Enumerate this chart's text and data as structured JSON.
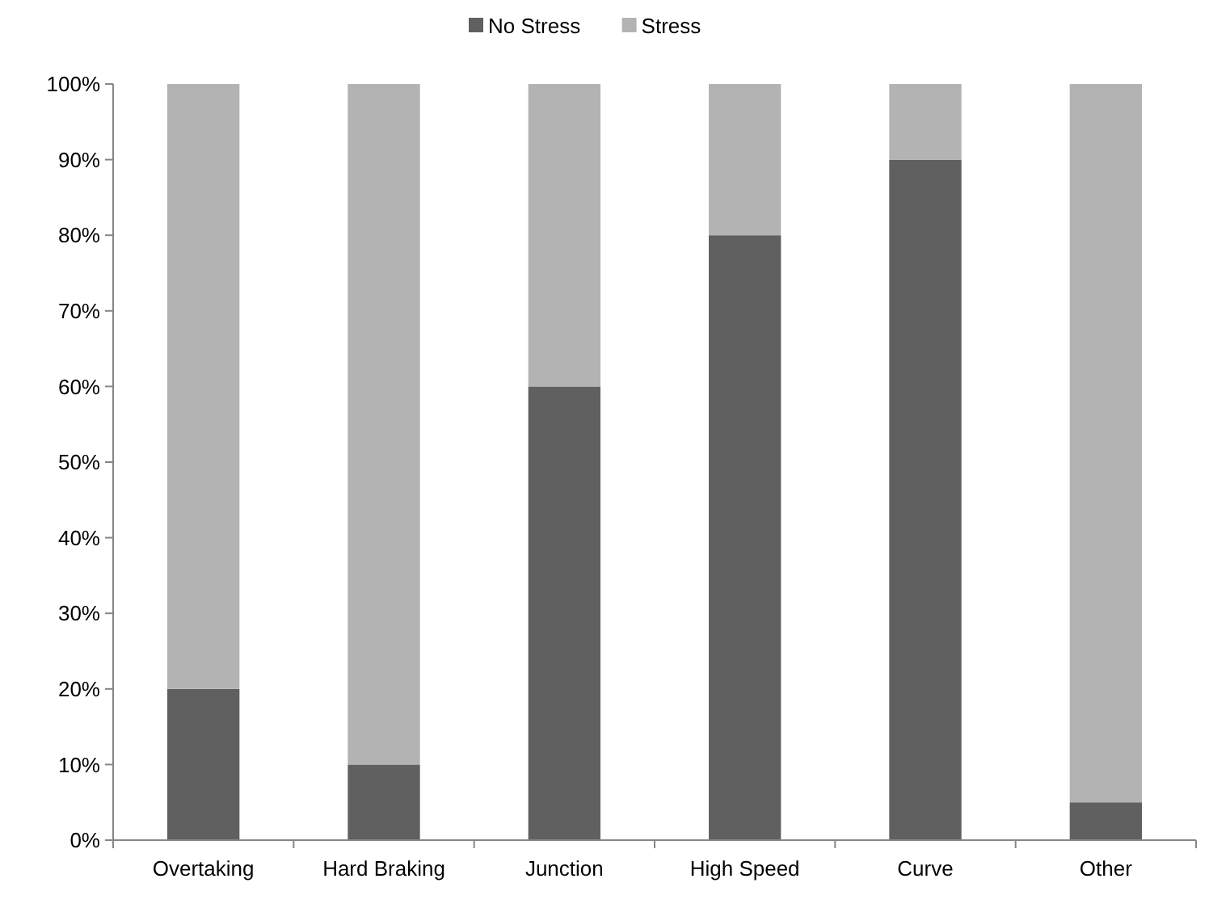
{
  "chart_data": {
    "type": "bar",
    "stacked": true,
    "categories": [
      "Overtaking",
      "Hard Braking",
      "Junction",
      "High Speed",
      "Curve",
      "Other"
    ],
    "series": [
      {
        "name": "No Stress",
        "color": "#606060",
        "values": [
          20,
          10,
          60,
          80,
          90,
          5
        ]
      },
      {
        "name": "Stress",
        "color": "#b3b3b3",
        "values": [
          80,
          90,
          40,
          20,
          10,
          95
        ]
      }
    ],
    "ylim": [
      0,
      100
    ],
    "yticks": [
      {
        "value": 0,
        "label": "0%"
      },
      {
        "value": 10,
        "label": "10%"
      },
      {
        "value": 20,
        "label": "20%"
      },
      {
        "value": 30,
        "label": "30%"
      },
      {
        "value": 40,
        "label": "40%"
      },
      {
        "value": 50,
        "label": "50%"
      },
      {
        "value": 60,
        "label": "60%"
      },
      {
        "value": 70,
        "label": "70%"
      },
      {
        "value": 80,
        "label": "80%"
      },
      {
        "value": 90,
        "label": "90%"
      },
      {
        "value": 100,
        "label": "100%"
      }
    ],
    "legend": "top"
  }
}
